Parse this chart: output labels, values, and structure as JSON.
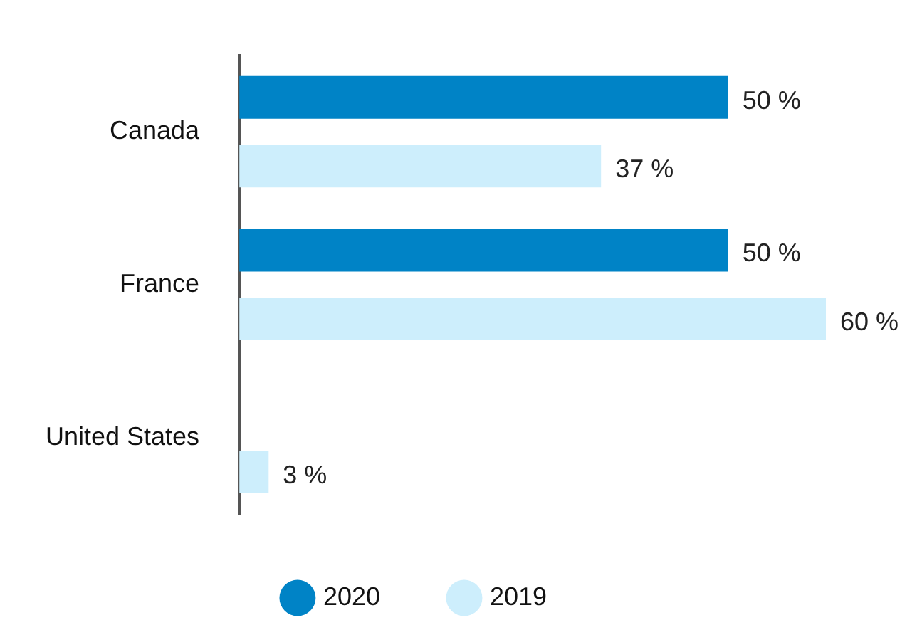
{
  "chart_data": {
    "type": "bar",
    "orientation": "horizontal",
    "categories": [
      "Canada",
      "France",
      "United States"
    ],
    "series": [
      {
        "name": "2020",
        "color": "#0083c6",
        "values": [
          50,
          50,
          null
        ],
        "value_labels": [
          "50 %",
          "50 %",
          null
        ]
      },
      {
        "name": "2019",
        "color": "#cdeefc",
        "values": [
          37,
          60,
          3
        ],
        "value_labels": [
          "37 %",
          "60 %",
          "3 %"
        ]
      }
    ],
    "legend": "bottom",
    "tick_labels": "y"
  }
}
